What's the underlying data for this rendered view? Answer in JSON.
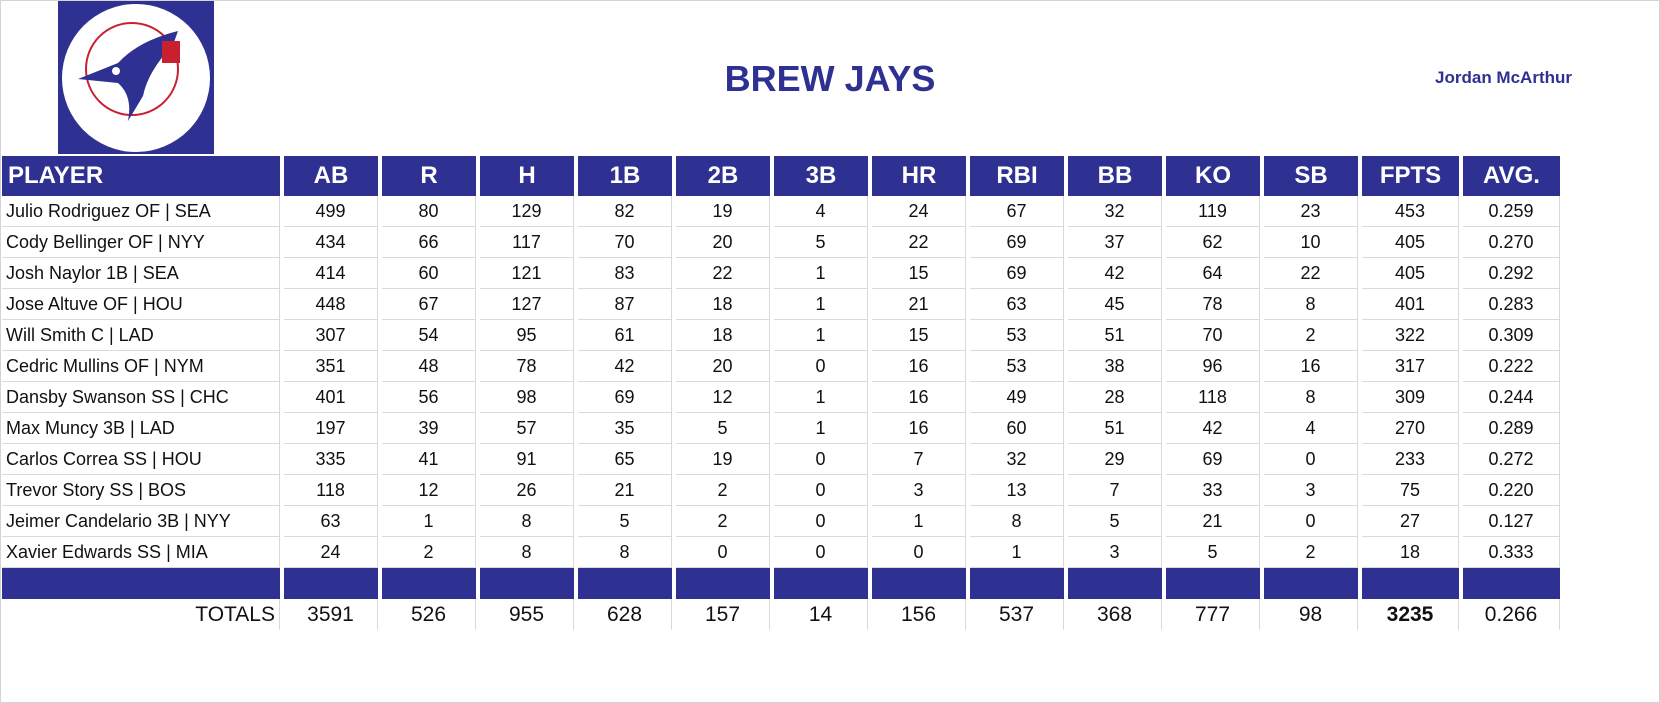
{
  "header": {
    "title": "BREW JAYS",
    "owner": "Jordan McArthur",
    "logo_text": "BREW JAYS"
  },
  "colors": {
    "brand": "#2E3192",
    "logo_red": "#C8202F"
  },
  "columns": [
    "PLAYER",
    "AB",
    "R",
    "H",
    "1B",
    "2B",
    "3B",
    "HR",
    "RBI",
    "BB",
    "KO",
    "SB",
    "FPTS",
    "AVG."
  ],
  "rows": [
    [
      "Julio Rodriguez OF | SEA",
      "499",
      "80",
      "129",
      "82",
      "19",
      "4",
      "24",
      "67",
      "32",
      "119",
      "23",
      "453",
      "0.259"
    ],
    [
      "Cody Bellinger OF | NYY",
      "434",
      "66",
      "117",
      "70",
      "20",
      "5",
      "22",
      "69",
      "37",
      "62",
      "10",
      "405",
      "0.270"
    ],
    [
      "Josh Naylor 1B | SEA",
      "414",
      "60",
      "121",
      "83",
      "22",
      "1",
      "15",
      "69",
      "42",
      "64",
      "22",
      "405",
      "0.292"
    ],
    [
      "Jose Altuve OF | HOU",
      "448",
      "67",
      "127",
      "87",
      "18",
      "1",
      "21",
      "63",
      "45",
      "78",
      "8",
      "401",
      "0.283"
    ],
    [
      "Will Smith C | LAD",
      "307",
      "54",
      "95",
      "61",
      "18",
      "1",
      "15",
      "53",
      "51",
      "70",
      "2",
      "322",
      "0.309"
    ],
    [
      "Cedric Mullins OF | NYM",
      "351",
      "48",
      "78",
      "42",
      "20",
      "0",
      "16",
      "53",
      "38",
      "96",
      "16",
      "317",
      "0.222"
    ],
    [
      "Dansby Swanson SS | CHC",
      "401",
      "56",
      "98",
      "69",
      "12",
      "1",
      "16",
      "49",
      "28",
      "118",
      "8",
      "309",
      "0.244"
    ],
    [
      "Max Muncy 3B | LAD",
      "197",
      "39",
      "57",
      "35",
      "5",
      "1",
      "16",
      "60",
      "51",
      "42",
      "4",
      "270",
      "0.289"
    ],
    [
      "Carlos Correa SS | HOU",
      "335",
      "41",
      "91",
      "65",
      "19",
      "0",
      "7",
      "32",
      "29",
      "69",
      "0",
      "233",
      "0.272"
    ],
    [
      "Trevor Story SS | BOS",
      "118",
      "12",
      "26",
      "21",
      "2",
      "0",
      "3",
      "13",
      "7",
      "33",
      "3",
      "75",
      "0.220"
    ],
    [
      "Jeimer Candelario 3B | NYY",
      "63",
      "1",
      "8",
      "5",
      "2",
      "0",
      "1",
      "8",
      "5",
      "21",
      "0",
      "27",
      "0.127"
    ],
    [
      "Xavier Edwards SS | MIA",
      "24",
      "2",
      "8",
      "8",
      "0",
      "0",
      "0",
      "1",
      "3",
      "5",
      "2",
      "18",
      "0.333"
    ]
  ],
  "totals": [
    "TOTALS",
    "3591",
    "526",
    "955",
    "628",
    "157",
    "14",
    "156",
    "537",
    "368",
    "777",
    "98",
    "3235",
    "0.266"
  ]
}
